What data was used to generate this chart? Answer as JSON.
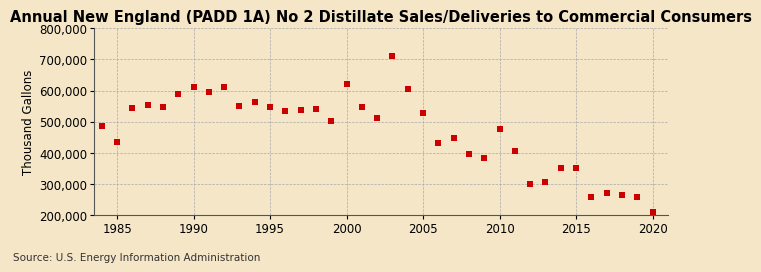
{
  "title": "Annual New England (PADD 1A) No 2 Distillate Sales/Deliveries to Commercial Consumers",
  "ylabel": "Thousand Gallons",
  "source": "Source: U.S. Energy Information Administration",
  "background_color": "#f5e6c8",
  "years": [
    1984,
    1985,
    1986,
    1987,
    1988,
    1989,
    1990,
    1991,
    1992,
    1993,
    1994,
    1995,
    1996,
    1997,
    1998,
    1999,
    2000,
    2001,
    2002,
    2003,
    2004,
    2005,
    2006,
    2007,
    2008,
    2009,
    2010,
    2011,
    2012,
    2013,
    2014,
    2015,
    2016,
    2017,
    2018,
    2019,
    2020
  ],
  "values": [
    487000,
    435000,
    543000,
    553000,
    548000,
    590000,
    612000,
    595000,
    610000,
    552000,
    563000,
    548000,
    533000,
    537000,
    540000,
    503000,
    620000,
    547000,
    513000,
    710000,
    604000,
    529000,
    431000,
    448000,
    395000,
    383000,
    478000,
    405000,
    300000,
    308000,
    350000,
    353000,
    260000,
    270000,
    265000,
    259000,
    212000
  ],
  "marker_color": "#cc0000",
  "marker_size": 4,
  "ylim": [
    200000,
    800000
  ],
  "xlim": [
    1983.5,
    2021
  ],
  "yticks": [
    200000,
    300000,
    400000,
    500000,
    600000,
    700000,
    800000
  ],
  "xticks": [
    1985,
    1990,
    1995,
    2000,
    2005,
    2010,
    2015,
    2020
  ],
  "grid_color": "#aaaaaa",
  "title_fontsize": 10.5,
  "axis_fontsize": 8.5,
  "source_fontsize": 7.5
}
